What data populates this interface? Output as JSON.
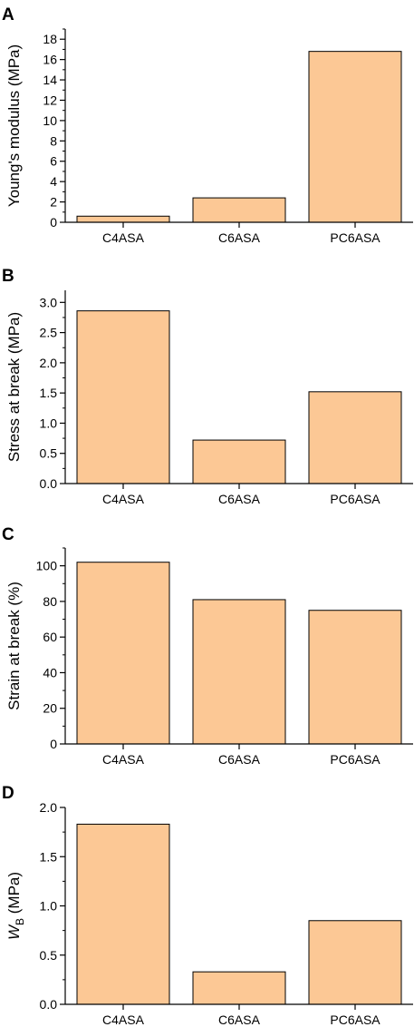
{
  "figure": {
    "bar_fill": "#FCC895",
    "bar_stroke": "#000000",
    "axis_color": "#000000"
  },
  "chart_data": [
    {
      "type": "bar",
      "panel": "A",
      "categories": [
        "C4ASA",
        "C6ASA",
        "PC6ASA"
      ],
      "values": [
        0.6,
        2.4,
        16.8
      ],
      "ylabel": "Young's modulus (MPa)",
      "ylim": [
        0,
        19
      ],
      "yticks": [
        0,
        2,
        4,
        6,
        8,
        10,
        12,
        14,
        16,
        18
      ],
      "ytick_labels": [
        "0",
        "2",
        "4",
        "6",
        "8",
        "10",
        "12",
        "14",
        "16",
        "18"
      ],
      "grid": false
    },
    {
      "type": "bar",
      "panel": "B",
      "categories": [
        "C4ASA",
        "C6ASA",
        "PC6ASA"
      ],
      "values": [
        2.86,
        0.72,
        1.52
      ],
      "ylabel": "Stress at break (MPa)",
      "ylim": [
        0,
        3.2
      ],
      "yticks": [
        0,
        0.5,
        1,
        1.5,
        2,
        2.5,
        3
      ],
      "ytick_labels": [
        "0.0",
        "0.5",
        "1.0",
        "1.5",
        "2.0",
        "2.5",
        "3.0"
      ],
      "grid": false
    },
    {
      "type": "bar",
      "panel": "C",
      "categories": [
        "C4ASA",
        "C6ASA",
        "PC6ASA"
      ],
      "values": [
        102,
        81,
        75
      ],
      "ylabel": "Strain at break (%)",
      "ylim": [
        0,
        110
      ],
      "yticks": [
        0,
        20,
        40,
        60,
        80,
        100
      ],
      "ytick_labels": [
        "0",
        "20",
        "40",
        "60",
        "80",
        "100"
      ],
      "grid": false
    },
    {
      "type": "bar",
      "panel": "D",
      "categories": [
        "C4ASA",
        "C6ASA",
        "PC6ASA"
      ],
      "values": [
        1.83,
        0.33,
        0.85
      ],
      "ylabel": "W_B (MPa)",
      "ylabel_main": "W",
      "ylabel_sub": "B",
      "ylabel_unit": " (MPa)",
      "ylim": [
        0,
        2.0
      ],
      "yticks": [
        0,
        0.5,
        1,
        1.5,
        2
      ],
      "ytick_labels": [
        "0.0",
        "0.5",
        "1.0",
        "1.5",
        "2.0"
      ],
      "grid": false
    }
  ]
}
